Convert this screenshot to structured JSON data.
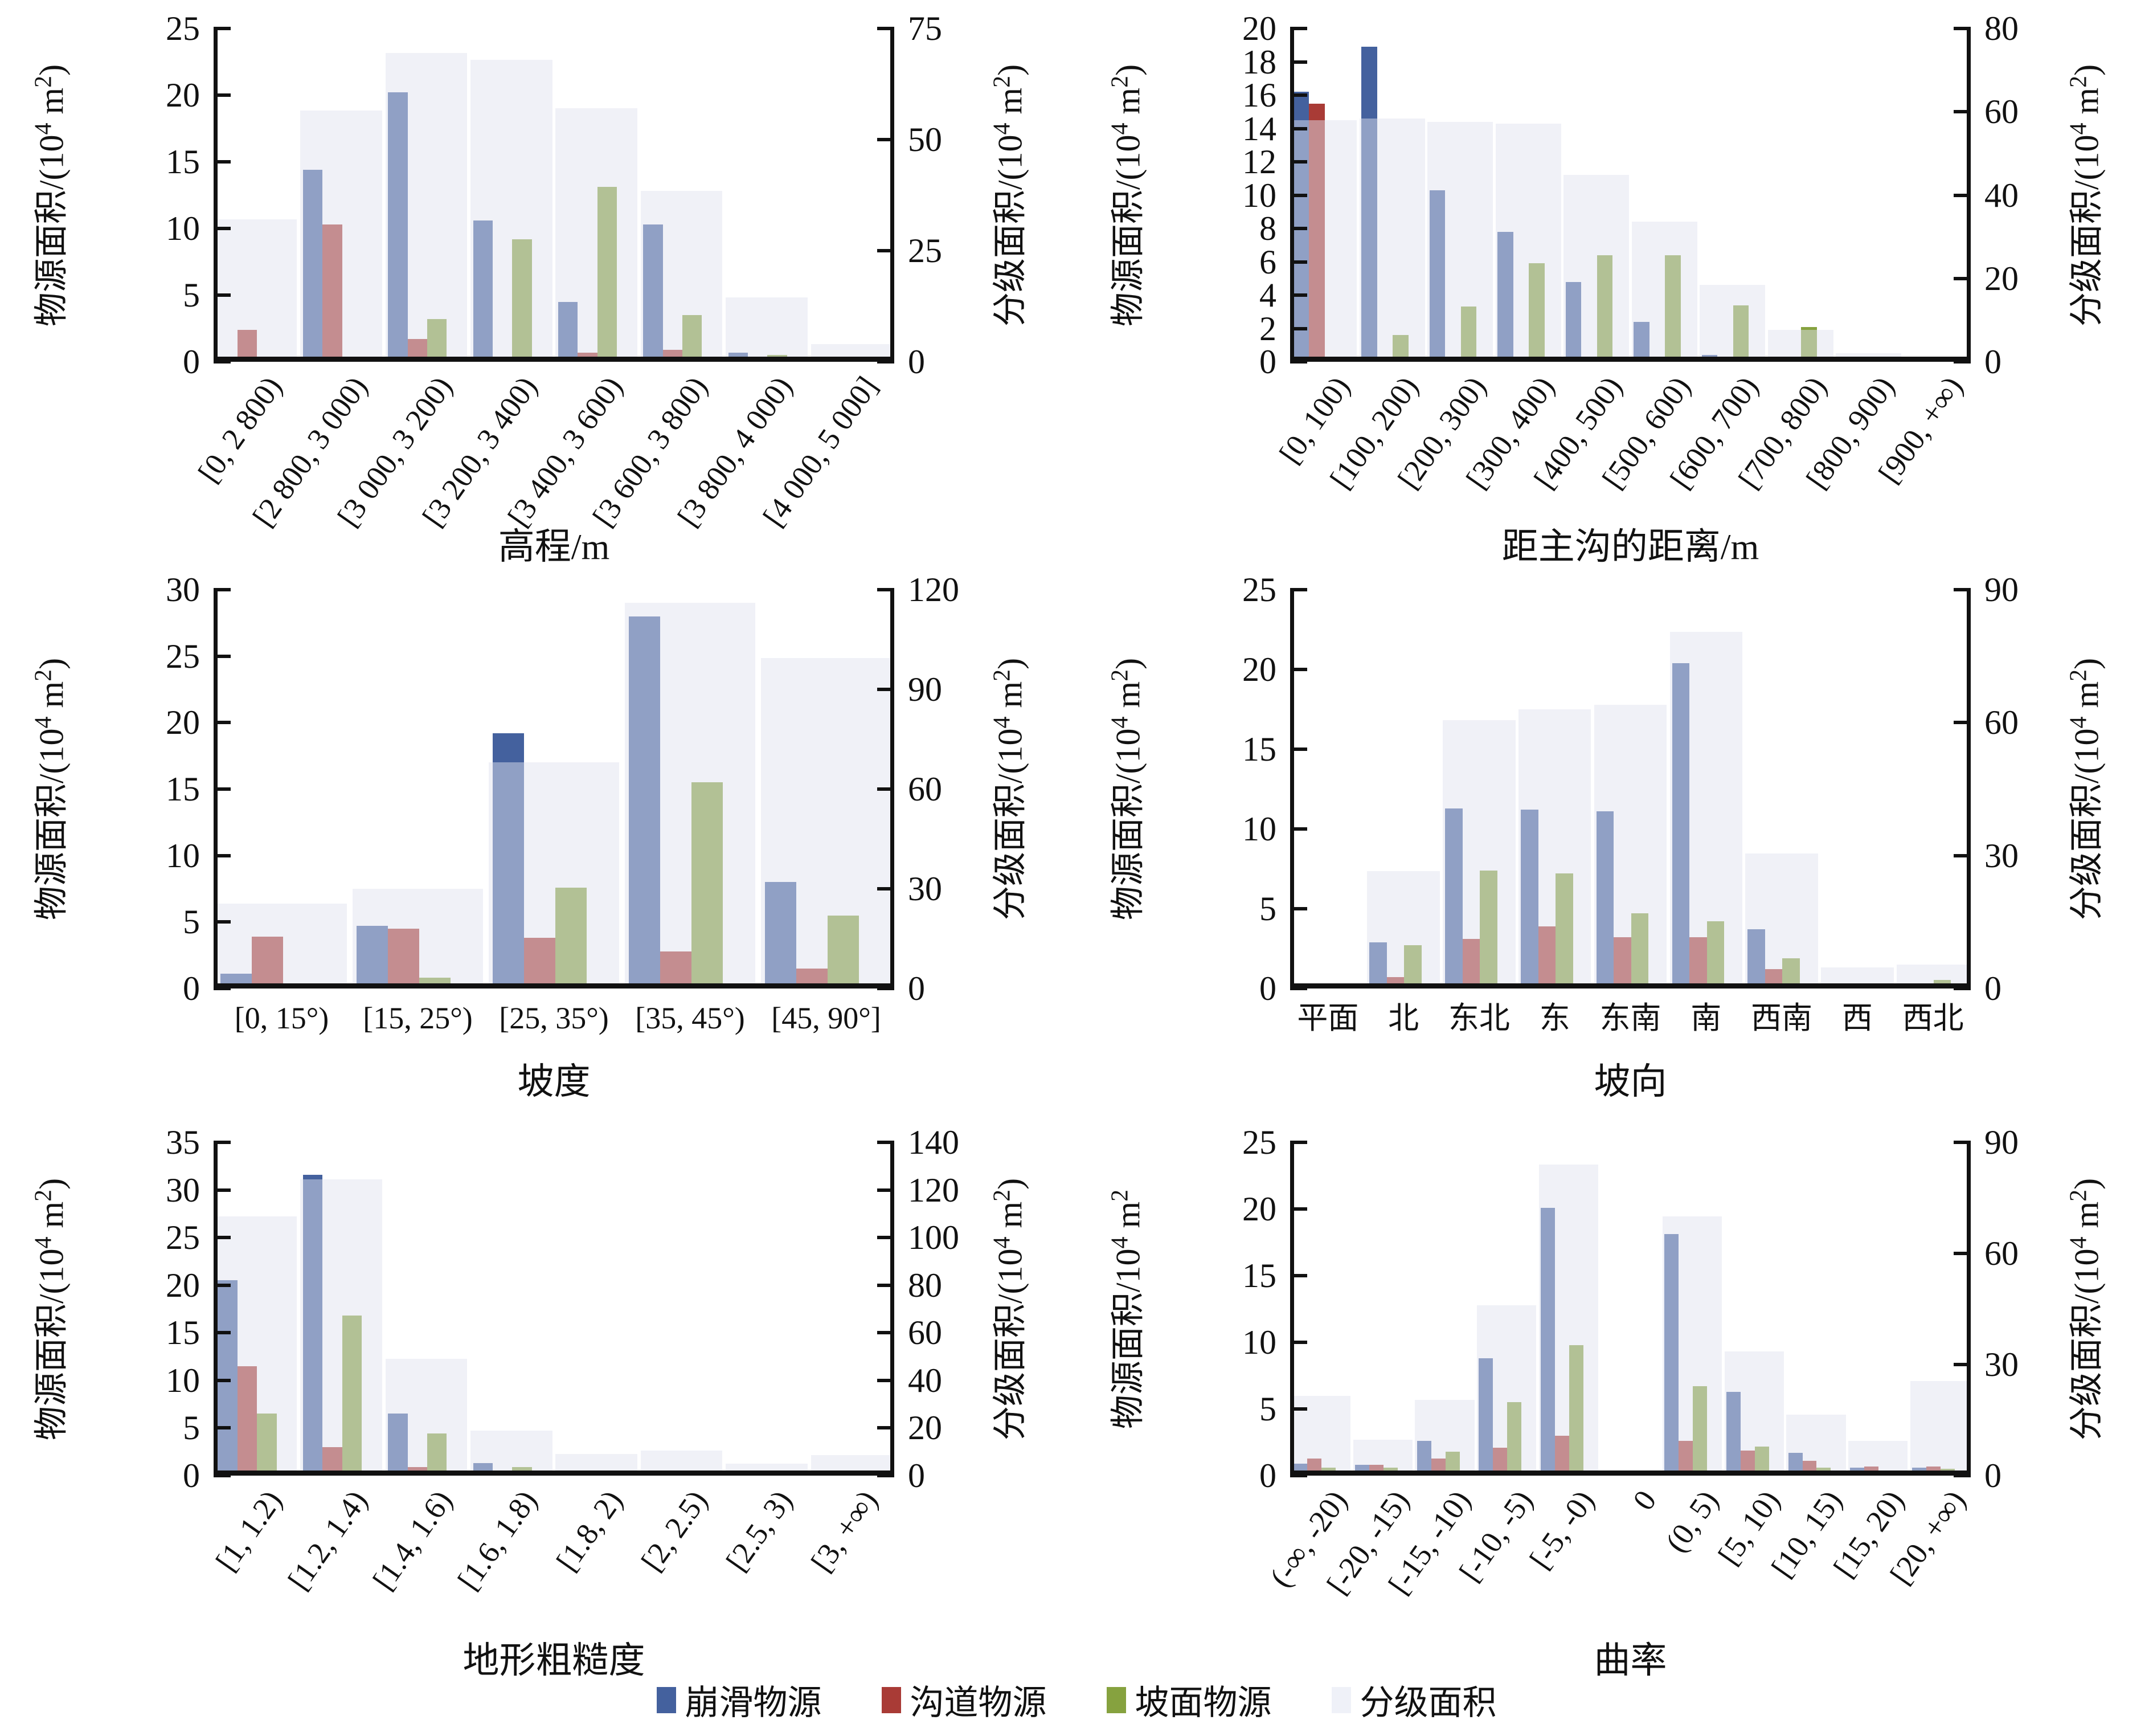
{
  "palette": {
    "collapse_slide": "#44619e",
    "channel": "#a93b36",
    "slope_surface": "#86a23f",
    "graded_overlay": "rgba(224,226,239,0.49)",
    "graded_legend_chip": "#eff1f8",
    "axis": "#111111"
  },
  "legend": {
    "items": [
      {
        "key": "collapse_slide",
        "label": "崩滑物源"
      },
      {
        "key": "channel",
        "label": "沟道物源"
      },
      {
        "key": "slope_surface",
        "label": "坡面物源"
      },
      {
        "key": "graded_area",
        "label": "分级面积"
      }
    ]
  },
  "chart_data": [
    {
      "type": "bar",
      "name": "elevation",
      "xlabel": "高程/m",
      "left_axis": {
        "label": "物源面积/(10^4 m^2)",
        "max": 25,
        "step": 5
      },
      "right_axis": {
        "label": "分级面积/(10^4 m^2)",
        "max": 75,
        "step": 25
      },
      "x_tick_rotation": 55,
      "grid": false,
      "categories": [
        "[0, 2 800)",
        "[2 800, 3 000)",
        "[3 000, 3 200)",
        "[3 200, 3 400)",
        "[3 400, 3 600)",
        "[3 600, 3 800)",
        "[3 800, 4 000)",
        "[4 000, 5 000]"
      ],
      "series": [
        {
          "name": "崩滑物源",
          "key": "collapse_slide",
          "axis": "left",
          "values": [
            0.4,
            14.4,
            20.2,
            10.6,
            4.5,
            10.3,
            0.7,
            0
          ]
        },
        {
          "name": "沟道物源",
          "key": "channel",
          "axis": "left",
          "values": [
            2.4,
            10.3,
            1.7,
            0.1,
            0.7,
            0.9,
            0.15,
            0
          ]
        },
        {
          "name": "坡面物源",
          "key": "slope_surface",
          "axis": "left",
          "values": [
            0,
            0,
            3.2,
            9.2,
            13.1,
            3.5,
            0.5,
            0
          ]
        },
        {
          "name": "分级面积",
          "key": "graded_area",
          "axis": "right",
          "values": [
            32,
            56.5,
            69.5,
            68,
            57,
            38.5,
            14.5,
            4
          ]
        }
      ]
    },
    {
      "type": "bar",
      "name": "distance-to-main-gully",
      "xlabel": "距主沟的距离/m",
      "left_axis": {
        "label": "物源面积/(10^4 m^2)",
        "max": 20,
        "step": 2
      },
      "right_axis": {
        "label": "分级面积/(10^4 m^2)",
        "max": 80,
        "step": 20
      },
      "x_tick_rotation": 55,
      "grid": false,
      "categories": [
        "[0, 100)",
        "[100, 200)",
        "[200, 300)",
        "[300, 400)",
        "[400, 500)",
        "[500, 600)",
        "[600, 700)",
        "[700, 800)",
        "[800, 900)",
        "[900, +∞)"
      ],
      "series": [
        {
          "name": "崩滑物源",
          "key": "collapse_slide",
          "axis": "left",
          "values": [
            16.2,
            18.9,
            10.3,
            7.8,
            4.8,
            2.4,
            0.4,
            0,
            0,
            0
          ]
        },
        {
          "name": "沟道物源",
          "key": "channel",
          "axis": "left",
          "values": [
            15.5,
            0.3,
            0,
            0,
            0,
            0,
            0,
            0,
            0,
            0
          ]
        },
        {
          "name": "坡面物源",
          "key": "slope_surface",
          "axis": "left",
          "values": [
            0,
            1.6,
            3.3,
            5.9,
            6.4,
            6.4,
            3.4,
            2.1,
            0,
            0
          ]
        },
        {
          "name": "分级面积",
          "key": "graded_area",
          "axis": "right",
          "values": [
            58,
            58.4,
            57.6,
            57.2,
            44.8,
            33.6,
            18.4,
            7.6,
            2,
            0.8
          ]
        }
      ]
    },
    {
      "type": "bar",
      "name": "slope-gradient",
      "xlabel": "坡度",
      "left_axis": {
        "label": "物源面积/(10^4 m^2)",
        "max": 30,
        "step": 5
      },
      "right_axis": {
        "label": "分级面积/(10^4 m^2)",
        "max": 120,
        "step": 30
      },
      "x_tick_rotation": 0,
      "grid": false,
      "categories": [
        "[0, 15°)",
        "[15, 25°)",
        "[25, 35°)",
        "[35, 45°)",
        "[45, 90°]"
      ],
      "series": [
        {
          "name": "崩滑物源",
          "key": "collapse_slide",
          "axis": "left",
          "values": [
            1.1,
            4.7,
            19.2,
            28,
            8
          ]
        },
        {
          "name": "沟道物源",
          "key": "channel",
          "axis": "left",
          "values": [
            3.9,
            4.5,
            3.8,
            2.8,
            1.5
          ]
        },
        {
          "name": "坡面物源",
          "key": "slope_surface",
          "axis": "left",
          "values": [
            0,
            0.8,
            7.6,
            15.5,
            5.5
          ]
        },
        {
          "name": "分级面积",
          "key": "graded_area",
          "axis": "right",
          "values": [
            25.5,
            30,
            68,
            116,
            99.5
          ]
        }
      ]
    },
    {
      "type": "bar",
      "name": "aspect",
      "xlabel": "坡向",
      "left_axis": {
        "label": "物源面积/(10^4 m^2)",
        "max": 25,
        "step": 5
      },
      "right_axis": {
        "label": "分级面积/(10^4 m^2)",
        "max": 90,
        "step": 30
      },
      "x_tick_rotation": 0,
      "grid": false,
      "categories": [
        "平面",
        "北",
        "东北",
        "东",
        "东南",
        "南",
        "西南",
        "西",
        "西北"
      ],
      "series": [
        {
          "name": "崩滑物源",
          "key": "collapse_slide",
          "axis": "left",
          "values": [
            0.1,
            2.9,
            11.3,
            11.2,
            11.1,
            20.4,
            3.7,
            0.15,
            0.25
          ]
        },
        {
          "name": "沟道物源",
          "key": "channel",
          "axis": "left",
          "values": [
            0,
            0.7,
            3.1,
            3.9,
            3.2,
            3.2,
            1.2,
            0.15,
            0.2
          ]
        },
        {
          "name": "坡面物源",
          "key": "slope_surface",
          "axis": "left",
          "values": [
            0,
            2.7,
            7.4,
            7.2,
            4.7,
            4.2,
            1.9,
            0.25,
            0.55
          ]
        },
        {
          "name": "分级面积",
          "key": "graded_area",
          "axis": "right",
          "values": [
            0.5,
            26.5,
            60.5,
            63,
            64,
            80.5,
            30.5,
            4.7,
            5.4
          ]
        }
      ]
    },
    {
      "type": "bar",
      "name": "terrain-roughness",
      "xlabel": "地形粗糙度",
      "left_axis": {
        "label": "物源面积/(10^4 m^2)",
        "max": 35,
        "step": 5
      },
      "right_axis": {
        "label": "分级面积/(10^4 m^2)",
        "max": 140,
        "step": 20
      },
      "x_tick_rotation": 55,
      "grid": false,
      "categories": [
        "[1, 1.2)",
        "[1.2, 1.4)",
        "[1.4, 1.6)",
        "[1.6, 1.8)",
        "[1.8, 2)",
        "[2, 2.5)",
        "[2.5, 3)",
        "[3, +∞)"
      ],
      "series": [
        {
          "name": "崩滑物源",
          "key": "collapse_slide",
          "axis": "left",
          "values": [
            20.5,
            31.6,
            6.5,
            1.3,
            0.45,
            0.35,
            0.1,
            0
          ]
        },
        {
          "name": "沟道物源",
          "key": "channel",
          "axis": "left",
          "values": [
            11.5,
            3,
            0.9,
            0.35,
            0.1,
            0.05,
            0.05,
            0
          ]
        },
        {
          "name": "坡面物源",
          "key": "slope_surface",
          "axis": "left",
          "values": [
            6.5,
            16.8,
            4.4,
            0.9,
            0.4,
            0.1,
            0.05,
            0
          ]
        },
        {
          "name": "分级面积",
          "key": "graded_area",
          "axis": "right",
          "values": [
            109,
            124.5,
            49,
            19,
            9,
            10.5,
            5,
            8.5
          ]
        }
      ]
    },
    {
      "type": "bar",
      "name": "curvature",
      "xlabel": "曲率",
      "left_axis": {
        "label": "物源面积/10^4 m^2",
        "max": 25,
        "step": 5
      },
      "right_axis": {
        "label": "分级面积/(10^4 m^2)",
        "max": 90,
        "step": 30
      },
      "x_tick_rotation": 55,
      "grid": false,
      "categories": [
        "(-∞, -20)",
        "[-20, -15)",
        "[-15, -10)",
        "[-10, -5)",
        "[-5, -0)",
        "0",
        "(0, 5)",
        "[5, 10)",
        "[10, 15)",
        "[15, 20)",
        "[20, +∞)"
      ],
      "series": [
        {
          "name": "崩滑物源",
          "key": "collapse_slide",
          "axis": "left",
          "values": [
            0.9,
            0.8,
            2.6,
            8.8,
            20.1,
            0,
            18.1,
            6.3,
            1.7,
            0.6,
            0.6
          ]
        },
        {
          "name": "沟道物源",
          "key": "channel",
          "axis": "left",
          "values": [
            1.3,
            0.8,
            1.3,
            2.1,
            3,
            0,
            2.6,
            1.9,
            1.1,
            0.7,
            0.7
          ]
        },
        {
          "name": "坡面物源",
          "key": "slope_surface",
          "axis": "left",
          "values": [
            0.6,
            0.6,
            1.8,
            5.5,
            9.8,
            0,
            6.7,
            2.2,
            0.6,
            0.25,
            0.5
          ]
        },
        {
          "name": "分级面积",
          "key": "graded_area",
          "axis": "right",
          "values": [
            21.6,
            9.7,
            20.5,
            46,
            84,
            0,
            70,
            33.5,
            16.5,
            9.4,
            25.5
          ]
        }
      ]
    }
  ]
}
